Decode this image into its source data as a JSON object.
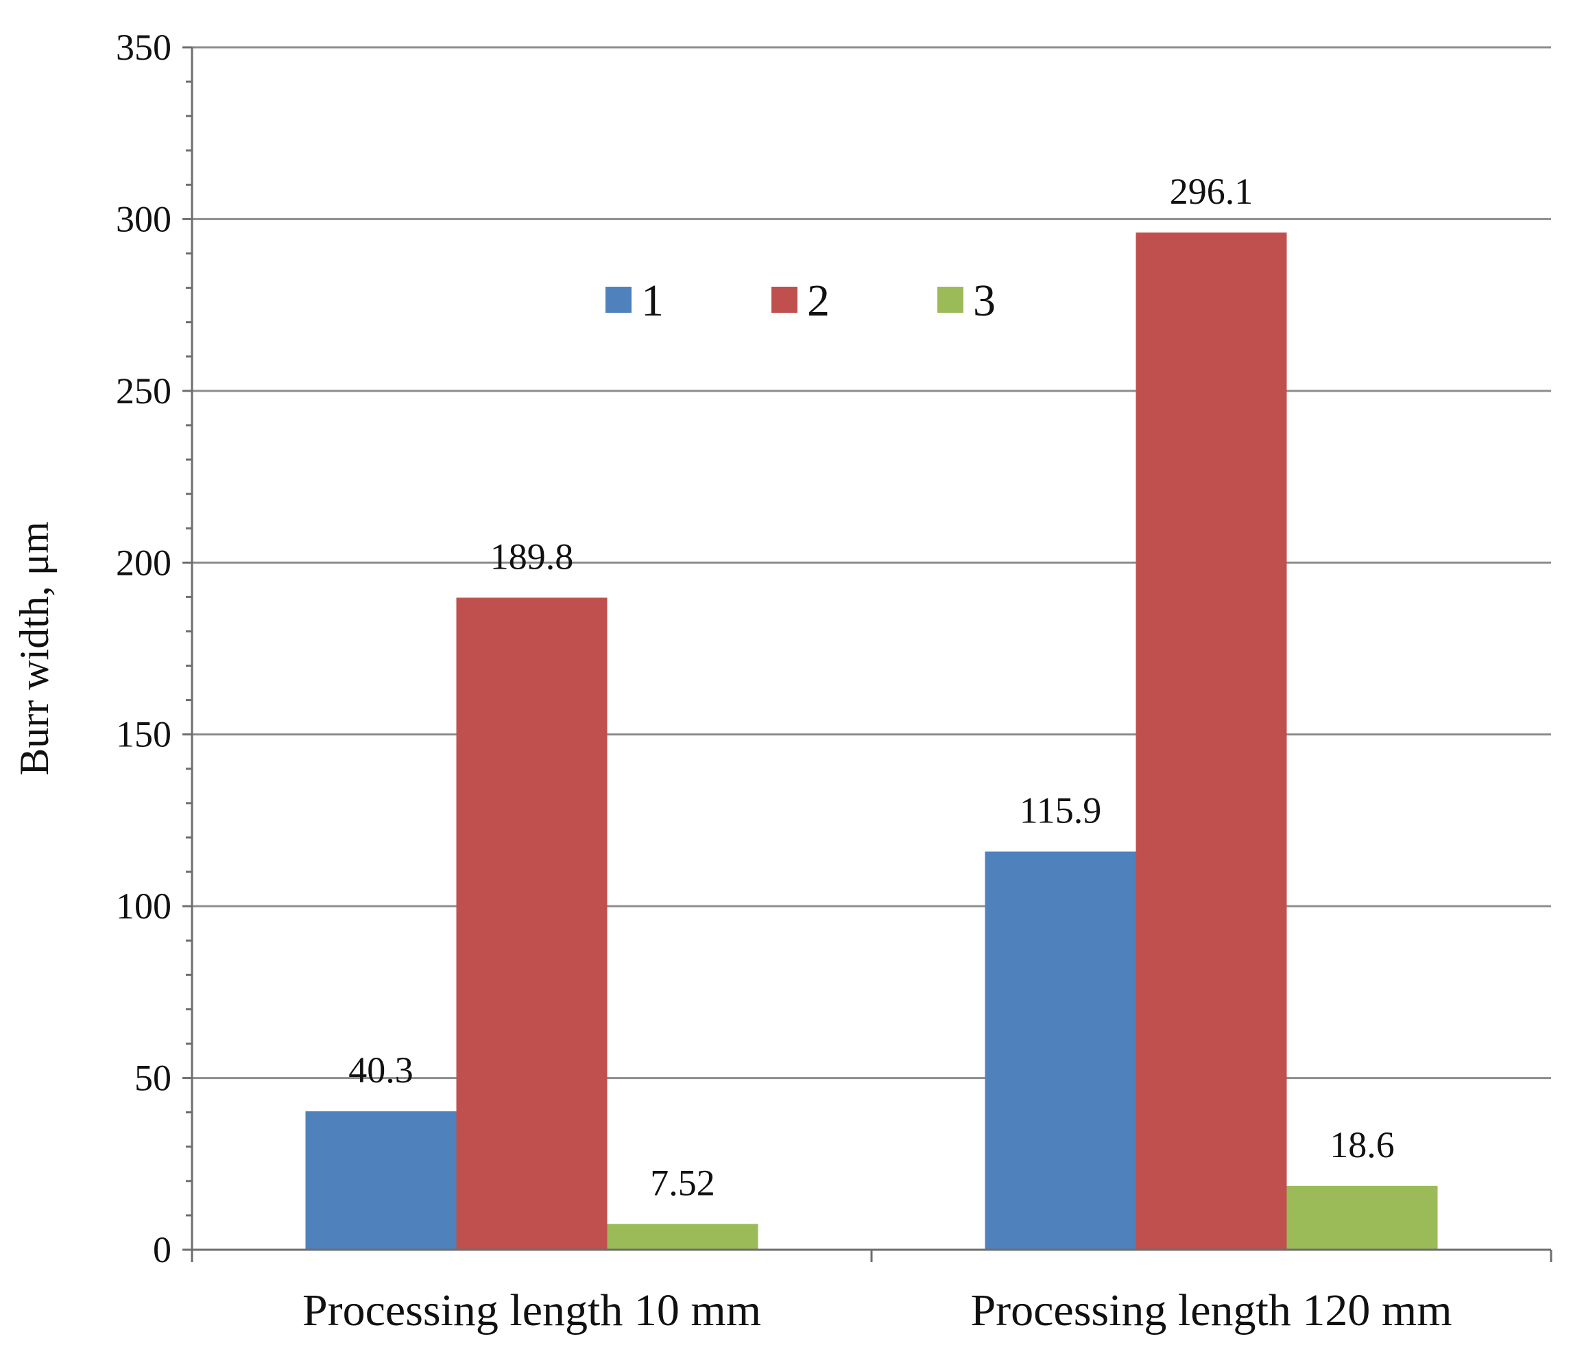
{
  "chart_data": {
    "type": "bar",
    "categories": [
      "Processing length 10 mm",
      "Processing length 120 mm"
    ],
    "series": [
      {
        "name": "1",
        "color": "#4f81bd",
        "values": [
          40.3,
          115.9
        ],
        "labels": [
          "40.3",
          "115.9"
        ]
      },
      {
        "name": "2",
        "color": "#c0504d",
        "values": [
          189.8,
          296.1
        ],
        "labels": [
          "189.8",
          "296.1"
        ]
      },
      {
        "name": "3",
        "color": "#9bbb59",
        "values": [
          7.52,
          18.6
        ],
        "labels": [
          "7.52",
          "18.6"
        ]
      }
    ],
    "title": "",
    "xlabel": "",
    "ylabel": "Burr width, μm",
    "ylim": [
      0,
      350
    ],
    "yticks": [
      0,
      50,
      100,
      150,
      200,
      250,
      300,
      350
    ],
    "ytick_labels": [
      "0",
      "50",
      "100",
      "150",
      "200",
      "250",
      "300",
      "350"
    ],
    "grid": true,
    "legend_position": "top-center"
  }
}
